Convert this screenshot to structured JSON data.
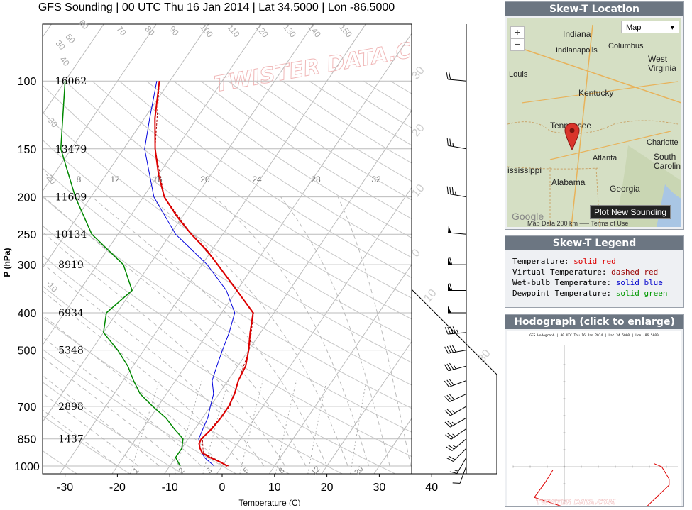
{
  "title": "GFS Sounding | 00 UTC Thu 16 Jan 2014 | Lat 34.5000 | Lon -86.5000",
  "chart_data": {
    "type": "line",
    "title": "GFS Sounding | 00 UTC Thu 16 Jan 2014 | Lat 34.5000 | Lon -86.5000",
    "xlabel": "Temperature (C)",
    "ylabel": "P (hPa)",
    "x_ticks": [
      -30,
      -20,
      -10,
      0,
      10,
      20,
      30,
      40
    ],
    "pressure_levels": [
      100,
      150,
      200,
      250,
      300,
      400,
      500,
      700,
      850,
      1000
    ],
    "height_labels": [
      "16062",
      "13479",
      "11609",
      "10134",
      "8919",
      "6934",
      "5348",
      "2898",
      "1437"
    ],
    "isotherm_labels": [
      "30",
      "40",
      "50",
      "60",
      "70",
      "80",
      "90",
      "100",
      "110",
      "120",
      "130",
      "140",
      "150",
      "-10",
      "-20",
      "-30"
    ],
    "mixing_ratio_labels": [
      "8",
      "12",
      "16",
      "20",
      "24",
      "28",
      "32"
    ],
    "bottom_labels": [
      "1",
      "2",
      "3",
      "5",
      "8",
      "12",
      "20"
    ],
    "watermark": "TWISTER DATA.COM",
    "series": [
      {
        "name": "Temperature",
        "points": [
          [
            1000,
            1.0
          ],
          [
            975,
            -1.0
          ],
          [
            950,
            -3.5
          ],
          [
            925,
            -5.5
          ],
          [
            900,
            -6.5
          ],
          [
            875,
            -7.3
          ],
          [
            850,
            -7.5
          ],
          [
            800,
            -6.8
          ],
          [
            750,
            -6.5
          ],
          [
            700,
            -6.5
          ],
          [
            650,
            -7.0
          ],
          [
            600,
            -8.0
          ],
          [
            550,
            -8.5
          ],
          [
            500,
            -10.0
          ],
          [
            450,
            -12.0
          ],
          [
            400,
            -14.0
          ],
          [
            350,
            -20.0
          ],
          [
            300,
            -27.0
          ],
          [
            275,
            -31.0
          ],
          [
            250,
            -36.0
          ],
          [
            225,
            -41.0
          ],
          [
            200,
            -46.0
          ],
          [
            175,
            -50.0
          ],
          [
            150,
            -54.0
          ],
          [
            125,
            -58.0
          ],
          [
            100,
            -62.0
          ]
        ]
      },
      {
        "name": "Virtual Temperature",
        "points": [
          [
            1000,
            1.2
          ],
          [
            925,
            -5.3
          ],
          [
            850,
            -7.3
          ],
          [
            700,
            -6.3
          ],
          [
            500,
            -9.9
          ],
          [
            400,
            -13.9
          ],
          [
            300,
            -26.9
          ],
          [
            250,
            -36.0
          ],
          [
            200,
            -46.0
          ],
          [
            150,
            -54.0
          ],
          [
            100,
            -62.0
          ]
        ]
      },
      {
        "name": "Wet-bulb Temperature",
        "points": [
          [
            1000,
            -1.5
          ],
          [
            950,
            -4.5
          ],
          [
            900,
            -6.5
          ],
          [
            850,
            -8.0
          ],
          [
            800,
            -8.5
          ],
          [
            750,
            -9.0
          ],
          [
            700,
            -10.0
          ],
          [
            650,
            -11.0
          ],
          [
            600,
            -13.0
          ],
          [
            550,
            -14.0
          ],
          [
            500,
            -15.0
          ],
          [
            450,
            -16.0
          ],
          [
            400,
            -17.5
          ],
          [
            350,
            -22.0
          ],
          [
            300,
            -29.0
          ],
          [
            250,
            -39.0
          ],
          [
            200,
            -48.0
          ],
          [
            150,
            -56.0
          ],
          [
            125,
            -59.0
          ],
          [
            100,
            -62.5
          ]
        ]
      },
      {
        "name": "Dewpoint Temperature",
        "points": [
          [
            1000,
            -8.0
          ],
          [
            950,
            -10.0
          ],
          [
            900,
            -10.0
          ],
          [
            850,
            -11.0
          ],
          [
            800,
            -14.0
          ],
          [
            750,
            -17.0
          ],
          [
            700,
            -21.0
          ],
          [
            650,
            -25.0
          ],
          [
            600,
            -28.0
          ],
          [
            550,
            -31.0
          ],
          [
            500,
            -35.0
          ],
          [
            450,
            -40.0
          ],
          [
            400,
            -42.0
          ],
          [
            350,
            -40.0
          ],
          [
            300,
            -45.0
          ],
          [
            250,
            -55.0
          ],
          [
            200,
            -63.0
          ],
          [
            150,
            -72.0
          ],
          [
            100,
            -80.0
          ]
        ]
      }
    ],
    "wind_barbs": [
      {
        "p": 1000,
        "dir": 200,
        "spd": 10
      },
      {
        "p": 950,
        "dir": 210,
        "spd": 15
      },
      {
        "p": 900,
        "dir": 225,
        "spd": 20
      },
      {
        "p": 850,
        "dir": 230,
        "spd": 25
      },
      {
        "p": 800,
        "dir": 235,
        "spd": 25
      },
      {
        "p": 750,
        "dir": 240,
        "spd": 25
      },
      {
        "p": 700,
        "dir": 240,
        "spd": 25
      },
      {
        "p": 650,
        "dir": 245,
        "spd": 30
      },
      {
        "p": 600,
        "dir": 250,
        "spd": 30
      },
      {
        "p": 550,
        "dir": 255,
        "spd": 35
      },
      {
        "p": 500,
        "dir": 260,
        "spd": 40
      },
      {
        "p": 450,
        "dir": 265,
        "spd": 45
      },
      {
        "p": 400,
        "dir": 270,
        "spd": 50
      },
      {
        "p": 350,
        "dir": 270,
        "spd": 60
      },
      {
        "p": 300,
        "dir": 270,
        "spd": 60
      },
      {
        "p": 250,
        "dir": 275,
        "spd": 50
      },
      {
        "p": 200,
        "dir": 280,
        "spd": 35
      },
      {
        "p": 150,
        "dir": 280,
        "spd": 25
      },
      {
        "p": 100,
        "dir": 275,
        "spd": 20
      }
    ]
  },
  "map_panel": {
    "header": "Skew-T Location",
    "map_type": "Map",
    "zoom_in": "+",
    "zoom_out": "−",
    "plot_button": "Plot New Sounding",
    "footer": "Map Data   200 km ⎯⎯⎯   Terms of Use",
    "places": [
      {
        "name": "Indiana",
        "kind": "state"
      },
      {
        "name": "Indianapolis",
        "kind": "city"
      },
      {
        "name": "Columbus",
        "kind": "city"
      },
      {
        "name": "West Virginia",
        "kind": "state"
      },
      {
        "name": "Louis",
        "kind": "city"
      },
      {
        "name": "Kentucky",
        "kind": "state"
      },
      {
        "name": "Tennessee",
        "kind": "state"
      },
      {
        "name": "Charlotte",
        "kind": "city"
      },
      {
        "name": "South Carolina",
        "kind": "state"
      },
      {
        "name": "Atlanta",
        "kind": "city"
      },
      {
        "name": "Alabama",
        "kind": "state"
      },
      {
        "name": "Georgia",
        "kind": "state"
      },
      {
        "name": "ississippi",
        "kind": "state"
      },
      {
        "name": "Google",
        "kind": "logo"
      }
    ]
  },
  "legend_panel": {
    "header": "Skew-T Legend",
    "items": [
      {
        "label": "Temperature:",
        "value": "solid red",
        "color": "#dd0000"
      },
      {
        "label": "Virtual Temperature:",
        "value": "dashed red",
        "color": "#990000"
      },
      {
        "label": "Wet-bulb Temperature:",
        "value": "solid blue",
        "color": "#0000cc"
      },
      {
        "label": "Dewpoint Temperature:",
        "value": "solid green",
        "color": "#009900"
      }
    ]
  },
  "hodograph_panel": {
    "header": "Hodograph (click to enlarge)",
    "title": "GFS Hodograph | 00 UTC Thu 16 Jan 2014 | Lat 34.5000 | Lon -86.5000",
    "points_uv": [
      [
        -3,
        -2
      ],
      [
        -5,
        -10
      ],
      [
        -8,
        -20
      ],
      [
        2,
        -28
      ],
      [
        14,
        -30
      ],
      [
        22,
        -26
      ],
      [
        28,
        -12
      ],
      [
        28,
        -8
      ],
      [
        26,
        0
      ],
      [
        24,
        2
      ]
    ]
  },
  "colors": {
    "temperature": "#dd0000",
    "virtual_temperature": "#aa0000",
    "wet_bulb": "#0000dd",
    "dewpoint": "#008800",
    "panel_header": "#6c7682"
  }
}
